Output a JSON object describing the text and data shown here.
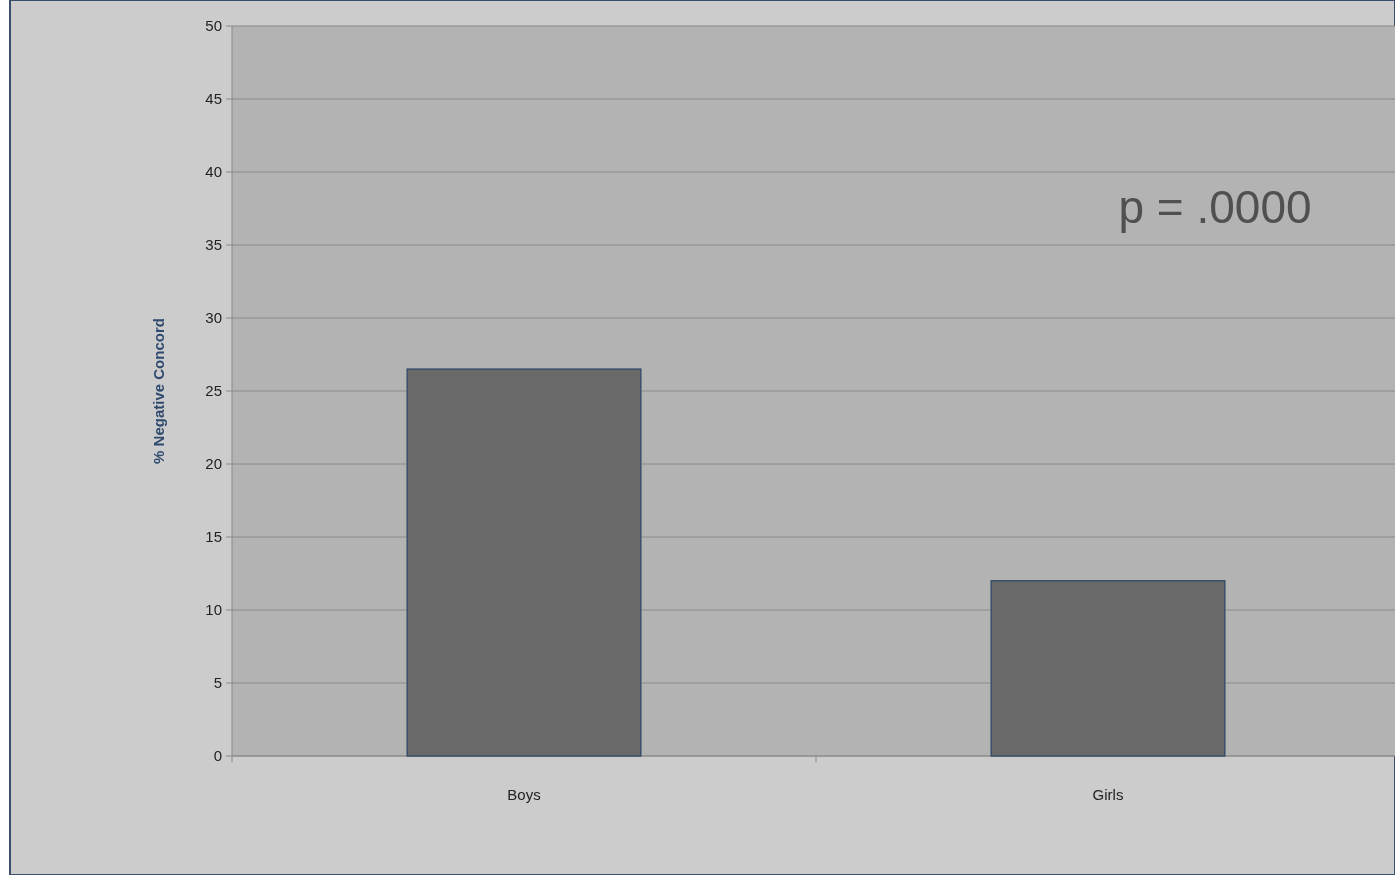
{
  "chart_data": {
    "type": "bar",
    "ylabel": "% Negative Concord",
    "categories": [
      "Boys",
      "Girls"
    ],
    "values": [
      26.5,
      12
    ],
    "color": "#696969",
    "ylim": [
      0,
      50
    ],
    "yticks": [
      0,
      5,
      10,
      15,
      20,
      25,
      30,
      35,
      40,
      45,
      50
    ],
    "grid": "y",
    "annotations": [
      "p = .0000"
    ]
  }
}
